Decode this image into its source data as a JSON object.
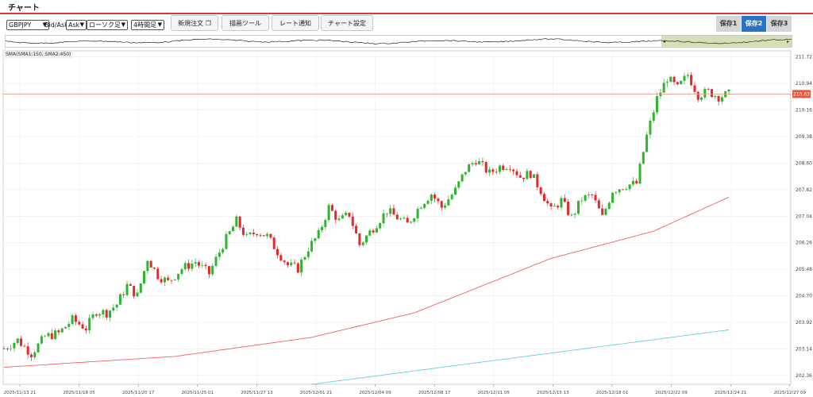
{
  "header": {
    "title": "チャート"
  },
  "toolbar": {
    "symbol": "GBPJPY",
    "price_type": "Bid/Ask",
    "price_side": "Ask",
    "chart_type": "ローソク足",
    "timeframe": "4時間足",
    "buttons": {
      "new_order": "新規注文",
      "drawing_tools": "描画ツール",
      "rate_alert": "レート通知",
      "chart_settings": "チャート設定"
    },
    "saves": [
      {
        "label": "保存1",
        "active": false
      },
      {
        "label": "保存2",
        "active": true
      },
      {
        "label": "保存3",
        "active": false
      }
    ]
  },
  "indicator_legend": "SMA(SMA1:150, SMA2:450)",
  "colors": {
    "bull": "#2db52d",
    "bear": "#e8262b",
    "sma1": "#f06262",
    "sma2": "#62cfe0",
    "price_line": "#e6a287",
    "price_label_bg": "#e8553a",
    "accent": "#d9363e",
    "nav_window": "#d3e0b3"
  },
  "chart_data": {
    "type": "candlestick",
    "symbol": "GBPJPY",
    "timeframe": "4時間足",
    "y_ticks": [
      202.36,
      203.14,
      203.92,
      204.7,
      205.48,
      206.26,
      207.04,
      207.82,
      208.6,
      209.38,
      210.16,
      210.94,
      211.72
    ],
    "ylim": [
      202.1,
      211.9
    ],
    "x_ticks": [
      "2025/11/13 21",
      "2025/11/18 05",
      "2025/11/20 17",
      "2025/11/25 01",
      "2025/11/27 13",
      "2025/12/01 21",
      "2025/12/04 09",
      "2025/12/08 17",
      "2025/12/11 05",
      "2025/12/15 13",
      "2025/12/18 01",
      "2025/12/22 09",
      "2025/12/24 21",
      "2025/12/27 09"
    ],
    "current_price": 210.63,
    "close_path": [
      [
        0,
        203.15
      ],
      [
        4,
        203.4
      ],
      [
        8,
        203.0
      ],
      [
        12,
        203.5
      ],
      [
        16,
        203.6
      ],
      [
        20,
        204.0
      ],
      [
        24,
        203.75
      ],
      [
        27,
        204.25
      ],
      [
        30,
        204.2
      ],
      [
        33,
        204.45
      ],
      [
        36,
        205.0
      ],
      [
        39,
        204.7
      ],
      [
        42,
        205.8
      ],
      [
        45,
        205.3
      ],
      [
        48,
        205.1
      ],
      [
        52,
        205.5
      ],
      [
        56,
        205.7
      ],
      [
        60,
        205.35
      ],
      [
        64,
        206.2
      ],
      [
        68,
        206.9
      ],
      [
        71,
        206.4
      ],
      [
        74,
        206.6
      ],
      [
        77,
        206.45
      ],
      [
        80,
        206.0
      ],
      [
        83,
        205.6
      ],
      [
        86,
        205.5
      ],
      [
        89,
        206.1
      ],
      [
        92,
        206.5
      ],
      [
        95,
        207.3
      ],
      [
        98,
        206.9
      ],
      [
        101,
        207.1
      ],
      [
        104,
        206.2
      ],
      [
        108,
        206.7
      ],
      [
        112,
        207.2
      ],
      [
        115,
        207.0
      ],
      [
        118,
        206.8
      ],
      [
        122,
        207.4
      ],
      [
        125,
        207.7
      ],
      [
        128,
        207.3
      ],
      [
        132,
        207.8
      ],
      [
        135,
        208.4
      ],
      [
        138,
        208.7
      ],
      [
        142,
        208.3
      ],
      [
        145,
        208.5
      ],
      [
        148,
        208.55
      ],
      [
        151,
        208.2
      ],
      [
        154,
        208.3
      ],
      [
        157,
        207.8
      ],
      [
        160,
        207.2
      ],
      [
        163,
        207.5
      ],
      [
        166,
        207.0
      ],
      [
        169,
        207.55
      ],
      [
        172,
        207.65
      ],
      [
        175,
        207.0
      ],
      [
        178,
        207.8
      ],
      [
        182,
        207.95
      ],
      [
        185,
        208.0
      ],
      [
        188,
        209.4
      ],
      [
        191,
        210.5
      ],
      [
        194,
        211.1
      ],
      [
        197,
        210.8
      ],
      [
        200,
        211.2
      ],
      [
        203,
        210.6
      ],
      [
        206,
        210.7
      ],
      [
        209,
        210.55
      ],
      [
        212,
        210.63
      ]
    ],
    "sma1_path": [
      [
        0,
        202.6
      ],
      [
        50,
        202.92
      ],
      [
        90,
        203.48
      ],
      [
        120,
        204.2
      ],
      [
        160,
        205.8
      ],
      [
        190,
        206.6
      ],
      [
        212,
        207.6
      ]
    ],
    "sma2_path": [
      [
        90,
        202.1
      ],
      [
        212,
        203.7
      ]
    ],
    "legend": [
      "SMA1:150",
      "SMA2:450"
    ]
  }
}
